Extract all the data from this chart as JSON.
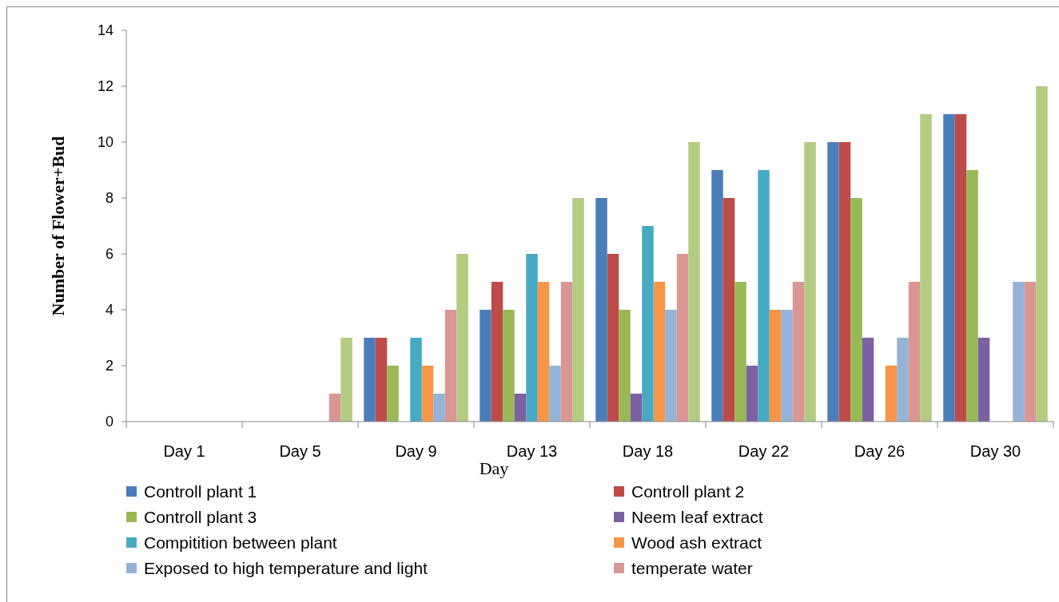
{
  "chart_data": {
    "type": "bar",
    "xlabel": "Day",
    "ylabel": "Number of Flower+Bud",
    "categories": [
      "Day 1",
      "Day 5",
      "Day 9",
      "Day 13",
      "Day 18",
      "Day 22",
      "Day 26",
      "Day 30"
    ],
    "series": [
      {
        "name": "Controll plant 1",
        "color": "#4a7ebb",
        "values": [
          0,
          0,
          3,
          4,
          8,
          9,
          10,
          11
        ]
      },
      {
        "name": "Controll plant 2",
        "color": "#be4b48",
        "values": [
          0,
          0,
          3,
          5,
          6,
          8,
          10,
          11
        ]
      },
      {
        "name": "Controll plant 3",
        "color": "#98b954",
        "values": [
          0,
          0,
          2,
          4,
          4,
          5,
          8,
          9
        ]
      },
      {
        "name": "Neem leaf extract",
        "color": "#7d60a0",
        "values": [
          0,
          0,
          0,
          1,
          1,
          2,
          3,
          3
        ]
      },
      {
        "name": "Compitition between plant",
        "color": "#46aac5",
        "values": [
          0,
          0,
          3,
          6,
          7,
          9,
          0,
          0
        ]
      },
      {
        "name": "Wood ash extract",
        "color": "#f79646",
        "values": [
          0,
          0,
          2,
          5,
          5,
          4,
          2,
          0
        ]
      },
      {
        "name": "Exposed to high temperature and light",
        "color": "#94b3d6",
        "values": [
          0,
          0,
          1,
          2,
          4,
          4,
          3,
          5
        ]
      },
      {
        "name": "temperate water",
        "color": "#d99694",
        "values": [
          0,
          1,
          4,
          5,
          6,
          5,
          5,
          5
        ]
      },
      {
        "color": "#b3cc82",
        "values": [
          0,
          3,
          6,
          8,
          10,
          10,
          11,
          12
        ]
      }
    ],
    "ylim": [
      0,
      14
    ],
    "yticks": [
      0,
      2,
      4,
      6,
      8,
      10,
      12,
      14
    ],
    "grid": false,
    "legend": "bottom"
  }
}
